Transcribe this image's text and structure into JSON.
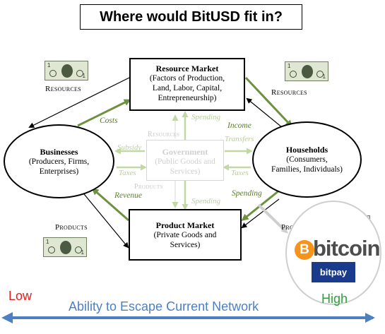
{
  "title": "Where would BitUSD fit in?",
  "resource_market": {
    "title": "Resource Market",
    "line1": "(Factors of Production,",
    "line2": "Land, Labor, Capital,",
    "line3": "Entrepreneurship)"
  },
  "product_market": {
    "title": "Product Market",
    "line1": "(Private Goods and",
    "line2": "Services)"
  },
  "businesses": {
    "title": "Businesses",
    "line1": "(Producers, Firms,",
    "line2": "Enterprises)"
  },
  "households": {
    "title": "Households",
    "line1": "(Consumers,",
    "line2": "Families, Individuals)"
  },
  "government": {
    "title": "Government",
    "line1": "(Public Goods and",
    "line2": "Services)"
  },
  "labels": {
    "resources_left": "Resources",
    "resources_right": "Resources",
    "resources_gov": "Resources",
    "products_left": "Products",
    "products_right": "Products",
    "products_gov": "Products",
    "costs": "Costs",
    "revenue": "Revenue",
    "income": "Income",
    "spending_right": "Spending",
    "spending_gov_top": "Spending",
    "spending_gov_bottom": "Spending",
    "subsidy": "Subsidy",
    "taxes_left": "Taxes",
    "transfers": "Transfers",
    "taxes_right": "Taxes"
  },
  "bitcoin": {
    "symbol": "B",
    "word": "bitcoin",
    "bitpay": "bitpay"
  },
  "scale": {
    "low": "Low",
    "high": "High",
    "label": "Ability to Escape Current Network"
  },
  "colors": {
    "flow_green": "#6e9140",
    "faint_green": "#c2d8a4",
    "low_red": "#e02020",
    "high_green": "#2f9e3a",
    "scale_blue": "#4d7fc4",
    "bitcoin_orange": "#f7931a",
    "bitpay_blue": "#1a3b8b"
  }
}
